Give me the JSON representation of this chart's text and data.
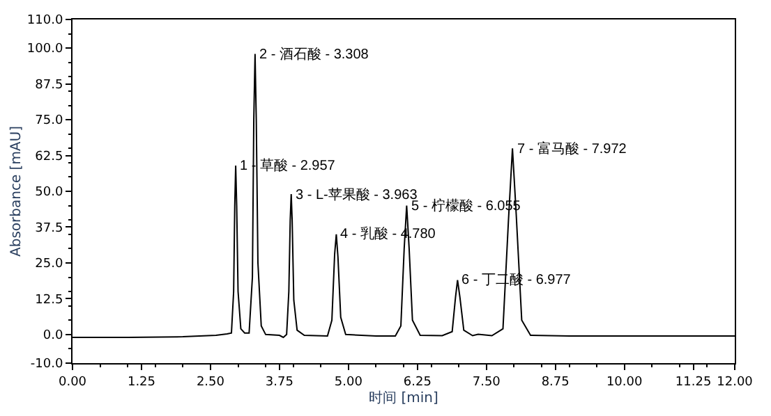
{
  "chart_data": {
    "type": "line",
    "xlabel": "时间 [min]",
    "ylabel": "Absorbance [mAU]",
    "xlim": [
      0,
      12
    ],
    "ylim": [
      -10,
      110
    ],
    "xticks": [
      {
        "value": 0,
        "label": "0.00"
      },
      {
        "value": 1.25,
        "label": "1.25"
      },
      {
        "value": 2.5,
        "label": "2.50"
      },
      {
        "value": 3.75,
        "label": "3.75"
      },
      {
        "value": 5,
        "label": "5.00"
      },
      {
        "value": 6.25,
        "label": "6.25"
      },
      {
        "value": 7.5,
        "label": "7.50"
      },
      {
        "value": 8.75,
        "label": "8.75"
      },
      {
        "value": 10,
        "label": "10.00"
      },
      {
        "value": 11.25,
        "label": "11.25"
      },
      {
        "value": 12,
        "label": "12.00"
      }
    ],
    "yticks": [
      {
        "value": -10,
        "label": "-10.0"
      },
      {
        "value": 0,
        "label": "0.0"
      },
      {
        "value": 12.5,
        "label": "12.5"
      },
      {
        "value": 25,
        "label": "25.0"
      },
      {
        "value": 37.5,
        "label": "37.5"
      },
      {
        "value": 50,
        "label": "50.0"
      },
      {
        "value": 62.5,
        "label": "62.5"
      },
      {
        "value": 75,
        "label": "75.0"
      },
      {
        "value": 87.5,
        "label": "87.5"
      },
      {
        "value": 100,
        "label": "100.0"
      },
      {
        "value": 110,
        "label": "110.0"
      }
    ],
    "marker": "none",
    "line_style": "solid",
    "x": [
      0,
      1.0,
      2.0,
      2.6,
      2.8,
      2.88,
      2.92,
      2.94,
      2.957,
      2.975,
      3.0,
      3.05,
      3.12,
      3.2,
      3.26,
      3.285,
      3.308,
      3.33,
      3.36,
      3.42,
      3.5,
      3.75,
      3.82,
      3.88,
      3.92,
      3.945,
      3.963,
      3.98,
      4.01,
      4.07,
      4.2,
      4.62,
      4.7,
      4.75,
      4.78,
      4.81,
      4.86,
      4.95,
      5.5,
      5.85,
      5.95,
      6.01,
      6.055,
      6.1,
      6.16,
      6.3,
      6.7,
      6.88,
      6.94,
      6.977,
      7.02,
      7.09,
      7.25,
      7.35,
      7.6,
      7.8,
      7.9,
      7.972,
      8.04,
      8.14,
      8.3,
      9,
      12
    ],
    "series": [
      {
        "color": "#000000",
        "values": [
          -1.0,
          -1.0,
          -0.8,
          -0.3,
          0.2,
          0.5,
          15,
          45,
          59,
          45,
          15,
          2,
          0.5,
          0.5,
          20,
          75,
          98,
          75,
          25,
          3,
          0,
          -0.3,
          -1.0,
          0,
          15,
          40,
          49,
          40,
          12,
          1.5,
          -0.3,
          -0.5,
          5,
          28,
          35,
          27,
          6,
          0,
          -0.5,
          -0.5,
          3,
          30,
          45,
          30,
          5,
          -0.3,
          -0.4,
          1,
          13,
          19,
          13,
          1.5,
          -0.4,
          0.1,
          -0.4,
          2,
          40,
          65,
          42,
          5,
          -0.3,
          -0.5,
          -0.5
        ]
      }
    ],
    "annotations": [
      {
        "text": "1 - 草酸 - 2.957",
        "x": 2.957,
        "y": 59
      },
      {
        "text": "2 - 酒石酸 - 3.308",
        "x": 3.308,
        "y": 98
      },
      {
        "text": "3 - L-苹果酸 - 3.963",
        "x": 3.963,
        "y": 49
      },
      {
        "text": "4 - 乳酸 - 4.780",
        "x": 4.78,
        "y": 35
      },
      {
        "text": "5 - 柠檬酸 - 6.055",
        "x": 6.055,
        "y": 45
      },
      {
        "text": "6 - 丁二酸 - 6.977",
        "x": 6.977,
        "y": 19
      },
      {
        "text": "7 - 富马酸 - 7.972",
        "x": 7.972,
        "y": 65
      }
    ]
  }
}
